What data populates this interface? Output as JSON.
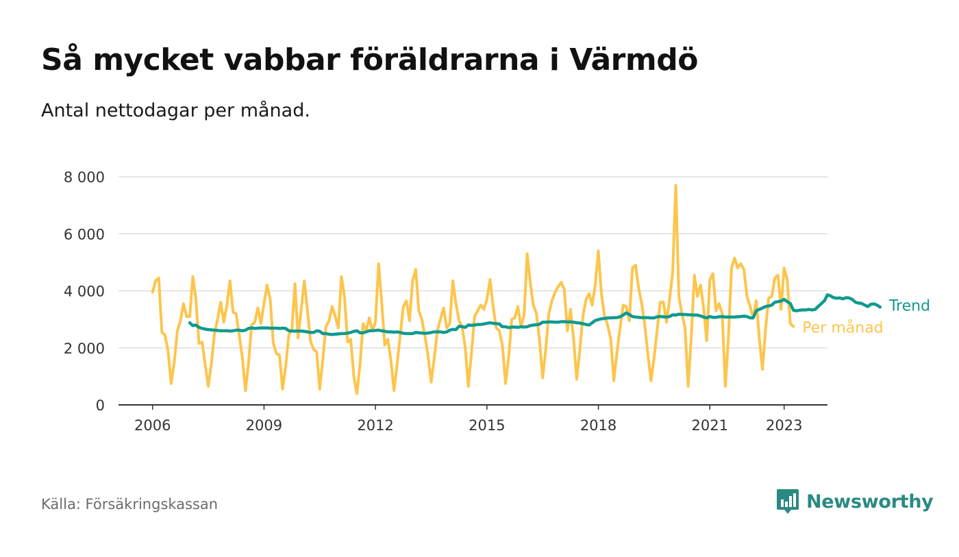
{
  "header": {
    "title": "Så mycket vabbar föräldrarna i Värmdö",
    "subtitle": "Antal nettodagar per månad."
  },
  "footer": {
    "source": "Källa: Försäkringskassan",
    "brand": "Newsworthy",
    "brand_icon": "bar-chart-speech-bubble-icon"
  },
  "colors": {
    "monthly": "#fdc54c",
    "trend": "#109a8e",
    "grid": "#dddddd",
    "axis": "#333333",
    "brand": "#2a8a82"
  },
  "chart_data": {
    "type": "line",
    "title": "Så mycket vabbar föräldrarna i Värmdö",
    "subtitle": "Antal nettodagar per månad.",
    "xlabel": "",
    "ylabel": "",
    "x_start": "2006-01",
    "x_end": "2023-05",
    "xlim": [
      "2005-02",
      "2024-03"
    ],
    "ylim": [
      0,
      8000
    ],
    "yticks": [
      0,
      2000,
      4000,
      6000,
      8000
    ],
    "ytick_labels": [
      "0",
      "2 000",
      "4 000",
      "6 000",
      "8 000"
    ],
    "xticks": [
      "2006-01",
      "2009-01",
      "2012-01",
      "2015-01",
      "2018-01",
      "2021-01",
      "2023-01"
    ],
    "xtick_labels": [
      "2006",
      "2009",
      "2012",
      "2015",
      "2018",
      "2021",
      "2023"
    ],
    "grid": "horizontal",
    "legend": "direct labels at line ends (right)",
    "series": [
      {
        "name": "Per månad",
        "color": "#fdc54c",
        "start": "2006-01",
        "values": [
          3950,
          4350,
          4450,
          2550,
          2450,
          1900,
          750,
          1500,
          2600,
          2950,
          3550,
          3100,
          3100,
          4500,
          3700,
          2150,
          2200,
          1400,
          650,
          1450,
          2500,
          3000,
          3600,
          2900,
          3500,
          4350,
          3250,
          3200,
          2450,
          1650,
          500,
          1450,
          2800,
          2900,
          3400,
          2850,
          3550,
          4200,
          3700,
          2150,
          1800,
          1750,
          550,
          1350,
          2450,
          2650,
          4250,
          2350,
          3350,
          4350,
          3350,
          2250,
          1950,
          1850,
          550,
          1600,
          2750,
          2950,
          3450,
          3100,
          2700,
          4500,
          3800,
          2200,
          2300,
          1000,
          400,
          1400,
          2850,
          2600,
          3050,
          2600,
          2900,
          4950,
          3600,
          2100,
          2300,
          1550,
          500,
          1450,
          2450,
          3450,
          3650,
          2950,
          4350,
          4750,
          3300,
          3000,
          2400,
          1700,
          800,
          1650,
          2600,
          3000,
          3400,
          2700,
          2850,
          4350,
          3550,
          2950,
          2750,
          2000,
          650,
          1800,
          3100,
          3300,
          3500,
          3350,
          3700,
          4400,
          3450,
          2700,
          2600,
          2100,
          750,
          1650,
          3000,
          3050,
          3450,
          2750,
          3150,
          5300,
          4300,
          3500,
          3200,
          2250,
          950,
          1950,
          3200,
          3650,
          3950,
          4150,
          4300,
          4050,
          2600,
          3350,
          2300,
          900,
          1900,
          3100,
          3700,
          3900,
          3500,
          4200,
          5400,
          3850,
          3100,
          2800,
          2300,
          850,
          1850,
          2700,
          3500,
          3450,
          2950,
          4800,
          4900,
          4100,
          3550,
          2800,
          1750,
          850,
          1650,
          2650,
          3600,
          3600,
          2900,
          3700,
          4650,
          7700,
          3800,
          3200,
          2700,
          650,
          2350,
          4550,
          3800,
          4200,
          3400,
          2250,
          4400,
          4600,
          3300,
          3550,
          3200,
          650,
          2350,
          4800,
          5150,
          4800,
          4950,
          4750,
          3800,
          3450,
          3050,
          3650,
          2300,
          1250,
          2650,
          3750,
          3800,
          4450,
          4550,
          3350,
          4800,
          4400,
          2850,
          2750
        ]
      },
      {
        "name": "Trend",
        "color": "#109a8e",
        "start": "2007-01",
        "values": [
          2880,
          2780,
          2800,
          2720,
          2680,
          2660,
          2640,
          2630,
          2620,
          2610,
          2600,
          2600,
          2600,
          2590,
          2600,
          2620,
          2620,
          2600,
          2620,
          2680,
          2700,
          2680,
          2690,
          2700,
          2700,
          2700,
          2690,
          2690,
          2690,
          2680,
          2690,
          2680,
          2600,
          2590,
          2590,
          2590,
          2590,
          2580,
          2560,
          2540,
          2540,
          2600,
          2580,
          2500,
          2500,
          2480,
          2470,
          2480,
          2490,
          2500,
          2500,
          2520,
          2540,
          2580,
          2600,
          2530,
          2530,
          2560,
          2600,
          2600,
          2610,
          2620,
          2600,
          2580,
          2560,
          2560,
          2550,
          2560,
          2540,
          2510,
          2500,
          2500,
          2500,
          2540,
          2530,
          2520,
          2510,
          2520,
          2540,
          2560,
          2560,
          2560,
          2540,
          2560,
          2620,
          2650,
          2640,
          2760,
          2740,
          2720,
          2800,
          2790,
          2800,
          2820,
          2820,
          2840,
          2860,
          2880,
          2860,
          2850,
          2840,
          2740,
          2740,
          2710,
          2730,
          2730,
          2720,
          2740,
          2730,
          2740,
          2780,
          2800,
          2810,
          2830,
          2900,
          2900,
          2910,
          2910,
          2900,
          2900,
          2920,
          2920,
          2910,
          2910,
          2900,
          2880,
          2870,
          2850,
          2820,
          2800,
          2880,
          2960,
          2990,
          3020,
          3030,
          3050,
          3050,
          3060,
          3060,
          3090,
          3150,
          3230,
          3170,
          3100,
          3080,
          3070,
          3060,
          3060,
          3060,
          3050,
          3050,
          3090,
          3100,
          3090,
          3080,
          3100,
          3160,
          3150,
          3180,
          3170,
          3170,
          3160,
          3160,
          3150,
          3150,
          3120,
          3080,
          3050,
          3100,
          3070,
          3070,
          3090,
          3100,
          3080,
          3080,
          3080,
          3080,
          3090,
          3100,
          3110,
          3100,
          3050,
          3050,
          3300,
          3350,
          3400,
          3450,
          3470,
          3500,
          3600,
          3620,
          3640,
          3700,
          3620,
          3550,
          3320,
          3300,
          3320,
          3330,
          3330,
          3350,
          3330,
          3350,
          3450,
          3550,
          3650,
          3860,
          3820,
          3760,
          3740,
          3750,
          3720,
          3760,
          3750,
          3700,
          3600,
          3570,
          3560,
          3500,
          3450,
          3530,
          3540,
          3500,
          3430
        ]
      }
    ]
  }
}
